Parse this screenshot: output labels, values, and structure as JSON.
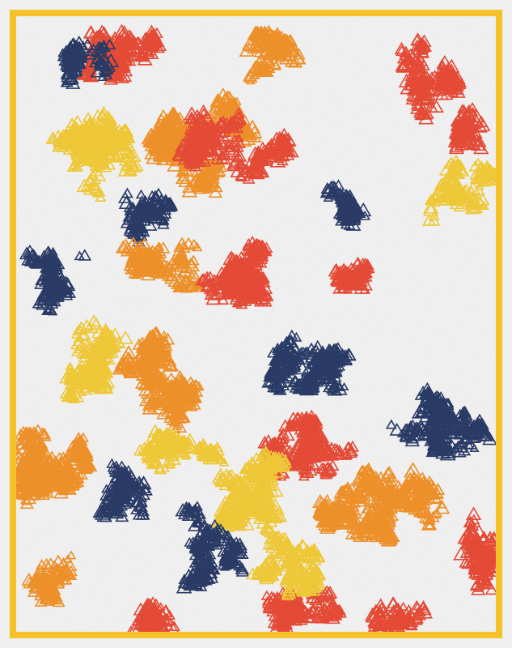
{
  "artwork": {
    "style": "generative triangle clusters with paper grain",
    "background_color": "#f4f4f4",
    "page_color": "#efefef",
    "frame_color": "#f5c22a",
    "palette": {
      "navy": "#1c2f5e",
      "red": "#e8402a",
      "orange": "#f28c1c",
      "yellow": "#f3c92c"
    }
  }
}
